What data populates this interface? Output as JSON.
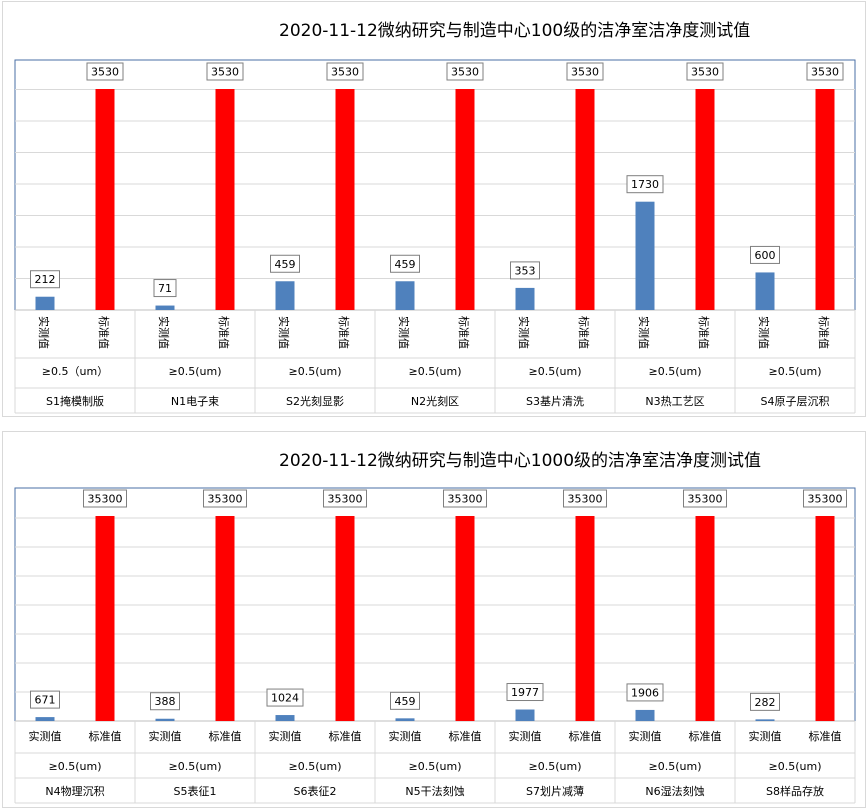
{
  "colors": {
    "actual": "#4f81bd",
    "standard": "#ff0000",
    "grid": "#d9d9d9",
    "frame": "#4a6fa5"
  },
  "chart_data": [
    {
      "type": "bar",
      "title": "2020-11-12微纳研究与制造中心100级的洁净室洁净度测试值",
      "ylim": [
        0,
        3530
      ],
      "grid": true,
      "categories": [
        "S1掩模制版",
        "N1电子束",
        "S2光刻显影",
        "N2光刻区",
        "S3基片清洗",
        "N3热工艺区",
        "S4原子层沉积"
      ],
      "particle_labels": [
        "≥0.5（um）",
        "≥0.5(um)",
        "≥0.5(um)",
        "≥0.5(um)",
        "≥0.5(um)",
        "≥0.5(um)",
        "≥0.5(um)"
      ],
      "bar_labels": [
        "实测值",
        "标准值"
      ],
      "series": [
        {
          "name": "实测值",
          "values": [
            212,
            71,
            459,
            459,
            353,
            1730,
            600
          ]
        },
        {
          "name": "标准值",
          "values": [
            3530,
            3530,
            3530,
            3530,
            3530,
            3530,
            3530
          ]
        }
      ]
    },
    {
      "type": "bar",
      "title": "2020-11-12微纳研究与制造中心1000级的洁净室洁净度测试值",
      "ylim": [
        0,
        35300
      ],
      "grid": true,
      "categories": [
        "N4物理沉积",
        "S5表征1",
        "S6表征2",
        "N5干法刻蚀",
        "S7划片减薄",
        "N6湿法刻蚀",
        "S8样品存放"
      ],
      "particle_labels": [
        "≥0.5(um)",
        "≥0.5(um)",
        "≥0.5(um)",
        "≥0.5(um)",
        "≥0.5(um)",
        "≥0.5(um)",
        "≥0.5(um)"
      ],
      "bar_labels": [
        "实测值",
        "标准值"
      ],
      "series": [
        {
          "name": "实测值",
          "values": [
            671,
            388,
            1024,
            459,
            1977,
            1906,
            282
          ]
        },
        {
          "name": "标准值",
          "values": [
            35300,
            35300,
            35300,
            35300,
            35300,
            35300,
            35300
          ]
        }
      ]
    }
  ]
}
